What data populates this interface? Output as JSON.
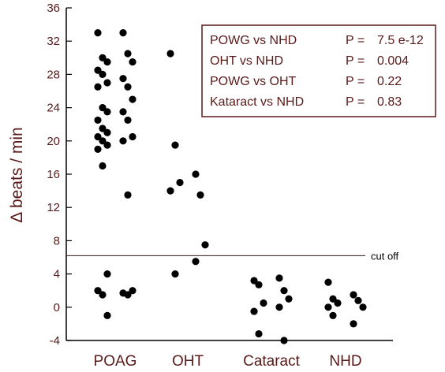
{
  "chart_data": {
    "type": "scatter",
    "title": "",
    "xlabel": "",
    "ylabel": "Δ beats / min",
    "ylim": [
      -4,
      36
    ],
    "yticks": [
      -4,
      0,
      4,
      8,
      12,
      16,
      20,
      24,
      28,
      32,
      36
    ],
    "grid": false,
    "categories": [
      "POAG",
      "OHT",
      "Cataract",
      "NHD"
    ],
    "groups": [
      {
        "category": "POAG",
        "columns": [
          [
            33,
            30,
            29.5,
            28.5,
            28,
            27,
            26.5,
            24,
            23.5,
            22.5,
            21.5,
            21,
            20.5,
            20,
            19.5,
            19,
            17,
            4,
            2,
            1.5,
            -1
          ],
          [
            33,
            30.5,
            29.5,
            27.5,
            26.5,
            25,
            23.5,
            22.5,
            20.5,
            20,
            13.5,
            2,
            1.7,
            1.5
          ]
        ]
      },
      {
        "category": "OHT",
        "columns": [
          [
            30.5,
            19.5,
            15,
            14,
            4
          ],
          [
            16,
            13.5,
            7.5,
            5.5
          ]
        ]
      },
      {
        "category": "Cataract",
        "columns": [
          [
            3.2,
            2.7,
            0.5,
            -0.5,
            -3.2
          ],
          [
            3.5,
            2,
            1,
            0,
            -4
          ]
        ]
      },
      {
        "category": "NHD",
        "columns": [
          [
            3,
            1,
            0.5,
            0,
            -1
          ],
          [
            1.5,
            0.8,
            0,
            -2
          ]
        ]
      }
    ],
    "reference_line": {
      "value": 6.2,
      "label": "cut off"
    },
    "annotation_box": {
      "rows": [
        {
          "comparison": "POWG vs NHD",
          "p": "P = ",
          "value": "7.5 e-12",
          "highlight": true
        },
        {
          "comparison": "OHT vs NHD",
          "p": "P = ",
          "value": "0.004",
          "highlight": false
        },
        {
          "comparison": "POWG vs OHT",
          "p": "P = ",
          "value": "0.22",
          "highlight": false
        },
        {
          "comparison": "Kataract vs NHD",
          "p": "P = ",
          "value": "0.83",
          "highlight": false
        }
      ]
    }
  },
  "colors": {
    "point": "#000000",
    "axis": "#000000",
    "text": "#5a1a1a",
    "highlight": "#e8431f",
    "box_border": "#5a1a1a"
  }
}
